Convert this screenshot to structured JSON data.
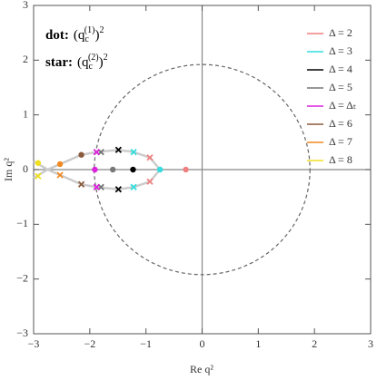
{
  "chart_data": {
    "type": "scatter",
    "xlabel": "Re q²",
    "ylabel": "Im q²",
    "xlim": [
      -3,
      3
    ],
    "ylim": [
      -3,
      3
    ],
    "xticks": [
      {
        "value": -3,
        "label": "−3"
      },
      {
        "value": -2,
        "label": "−2"
      },
      {
        "value": -1,
        "label": "−1"
      },
      0,
      1,
      2,
      3
    ],
    "yticks": [
      {
        "value": -3,
        "label": "−3"
      },
      {
        "value": -2,
        "label": "−2"
      },
      {
        "value": -1,
        "label": "−1"
      },
      0,
      1,
      2,
      3
    ],
    "annotations": [
      {
        "label": "dot:",
        "base": "(q",
        "sub": "c",
        "sup": "(1)",
        "close": ")",
        "power": "2"
      },
      {
        "label": "star:",
        "base": "(q",
        "sub": "c",
        "sup": "(2)",
        "close": ")",
        "power": "2"
      }
    ],
    "circle_radius": 1.92,
    "curve_color": "#cccccc",
    "curves": [
      {
        "x": [
          -3,
          -2.75,
          -2.53,
          -2.15,
          -1.88,
          -1.49,
          -1.22,
          -0.93,
          -0.75
        ],
        "y": [
          -0.15,
          0,
          0.1,
          0.27,
          0.32,
          0.36,
          0.32,
          0.22,
          0
        ]
      },
      {
        "x": [
          -3,
          -2.75,
          -2.53,
          -2.15,
          -1.88,
          -1.49,
          -1.22,
          -0.93,
          -0.75
        ],
        "y": [
          0.15,
          0,
          -0.1,
          -0.27,
          -0.32,
          -0.36,
          -0.32,
          -0.22,
          0
        ]
      }
    ],
    "legend": "top-right",
    "series": [
      {
        "name": "Δ = 2",
        "color": "#f08080",
        "dots": {
          "x": [
            -0.29
          ],
          "y": [
            0
          ]
        },
        "stars": {
          "x": [
            -0.93,
            -0.93
          ],
          "y": [
            0.22,
            -0.22
          ]
        }
      },
      {
        "name": "Δ = 3",
        "color": "#33dddd",
        "dots": {
          "x": [
            -0.75
          ],
          "y": [
            0
          ]
        },
        "stars": {
          "x": [
            -1.22,
            -1.22
          ],
          "y": [
            0.32,
            -0.32
          ]
        }
      },
      {
        "name": "Δ = 4",
        "color": "#000000",
        "dots": {
          "x": [
            -1.23
          ],
          "y": [
            0
          ]
        },
        "stars": {
          "x": [
            -1.49,
            -1.49
          ],
          "y": [
            0.36,
            -0.36
          ]
        }
      },
      {
        "name": "Δ = 5",
        "color": "#777777",
        "dots": {
          "x": [
            -1.59
          ],
          "y": [
            0
          ]
        },
        "stars": {
          "x": [
            -1.8,
            -1.8
          ],
          "y": [
            0.32,
            -0.32
          ]
        }
      },
      {
        "name": "Δ = Δₜ",
        "color": "#dd22dd",
        "dots": {
          "x": [
            -1.91
          ],
          "y": [
            0
          ]
        },
        "stars": {
          "x": [
            -1.88,
            -1.88
          ],
          "y": [
            0.32,
            -0.32
          ]
        }
      },
      {
        "name": "Δ = 6",
        "color": "#8b5a3c",
        "dots": {
          "x": [
            -2.15
          ],
          "y": [
            0.27
          ]
        },
        "stars": {
          "x": [
            -2.15
          ],
          "y": [
            -0.27
          ]
        }
      },
      {
        "name": "Δ = 7",
        "color": "#f08a20",
        "dots": {
          "x": [
            -2.53
          ],
          "y": [
            0.1
          ]
        },
        "stars": {
          "x": [
            -2.53
          ],
          "y": [
            -0.1
          ]
        }
      },
      {
        "name": "Δ = 8",
        "color": "#f2e020",
        "dots": {
          "x": [
            -2.92
          ],
          "y": [
            0.12
          ]
        },
        "stars": {
          "x": [
            -2.92
          ],
          "y": [
            -0.12
          ]
        }
      }
    ]
  }
}
